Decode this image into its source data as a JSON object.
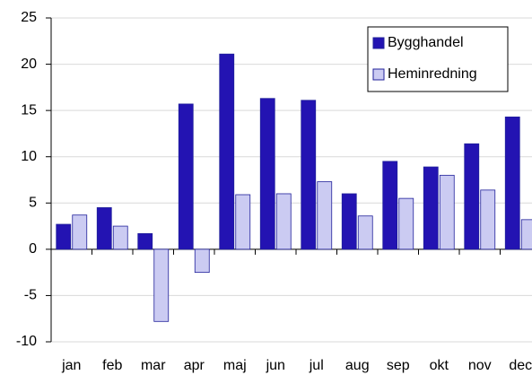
{
  "chart_data": {
    "type": "bar",
    "categories": [
      "jan",
      "feb",
      "mar",
      "apr",
      "maj",
      "jun",
      "jul",
      "aug",
      "sep",
      "okt",
      "nov",
      "dec"
    ],
    "series": [
      {
        "name": "Bygghandel",
        "color": "#2313b2",
        "values": [
          2.7,
          4.5,
          1.7,
          15.7,
          21.1,
          16.3,
          16.1,
          6.0,
          9.5,
          8.9,
          11.4,
          14.3
        ]
      },
      {
        "name": "Heminredning",
        "color": "#cbcbf2",
        "values": [
          3.7,
          2.5,
          -7.8,
          -2.5,
          5.9,
          6.0,
          7.3,
          3.6,
          5.5,
          8.0,
          6.4,
          3.2
        ]
      }
    ],
    "ylim": [
      -10,
      25
    ],
    "yticks": [
      -10,
      -5,
      0,
      5,
      10,
      15,
      20,
      25
    ],
    "grid": true,
    "legend": "upper right"
  }
}
